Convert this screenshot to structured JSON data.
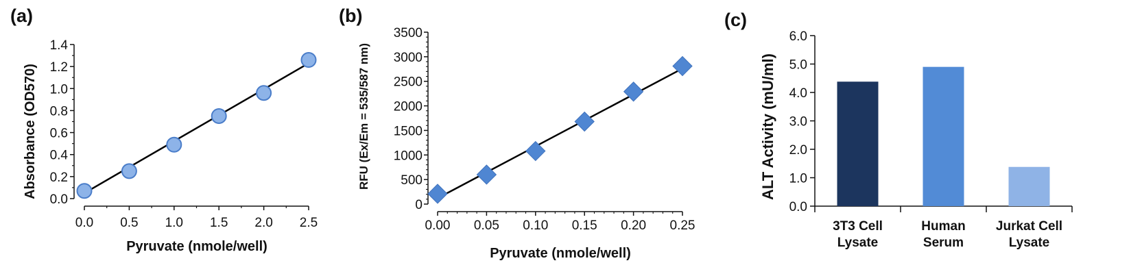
{
  "colors": {
    "circle_fill": "#8DB3E8",
    "circle_stroke": "#4A7DC9",
    "diamond_fill": "#4F86D2",
    "line": "#000000",
    "bars": [
      "#1C355E",
      "#528BD6",
      "#8FB3E6"
    ]
  },
  "chart_data": [
    {
      "panel": "(a)",
      "type": "scatter",
      "marker": "circle",
      "x": [
        0.0,
        0.5,
        1.0,
        1.5,
        2.0,
        2.5
      ],
      "y": [
        0.07,
        0.25,
        0.49,
        0.75,
        0.96,
        1.26
      ],
      "fit_line": {
        "x": [
          0.0,
          2.5
        ],
        "y": [
          0.05,
          1.23
        ]
      },
      "xlabel": "Pyruvate (nmole/well)",
      "ylabel": "Absorbance (OD570)",
      "xlim": [
        0.0,
        2.5
      ],
      "ylim": [
        0.0,
        1.4
      ],
      "xticks": [
        "0.0",
        "0.5",
        "1.0",
        "1.5",
        "2.0",
        "2.5"
      ],
      "yticks": [
        "0.0",
        "0.2",
        "0.4",
        "0.6",
        "0.8",
        "1.0",
        "1.2",
        "1.4"
      ]
    },
    {
      "panel": "(b)",
      "type": "scatter",
      "marker": "diamond",
      "x": [
        0.0,
        0.05,
        0.1,
        0.15,
        0.2,
        0.25
      ],
      "y": [
        210,
        600,
        1080,
        1680,
        2290,
        2810
      ],
      "fit_line": {
        "x": [
          0.0,
          0.25
        ],
        "y": [
          120,
          2760
        ]
      },
      "xlabel": "Pyruvate (nmole/well)",
      "ylabel": "RFU (Ex/Em = 535/587 nm)",
      "xlim": [
        0.0,
        0.25
      ],
      "ylim": [
        0,
        3500
      ],
      "xticks": [
        "0.00",
        "0.05",
        "0.10",
        "0.15",
        "0.20",
        "0.25"
      ],
      "yticks": [
        "0",
        "500",
        "1000",
        "1500",
        "2000",
        "2500",
        "3000",
        "3500"
      ]
    },
    {
      "panel": "(c)",
      "type": "bar",
      "categories": [
        [
          "3T3 Cell",
          "Lysate"
        ],
        [
          "Human",
          "Serum"
        ],
        [
          "Jurkat Cell",
          "Lysate"
        ]
      ],
      "values": [
        4.38,
        4.9,
        1.38
      ],
      "ylabel": "ALT Activity (mU/ml)",
      "ylim": [
        0.0,
        6.0
      ],
      "yticks": [
        "0.0",
        "1.0",
        "2.0",
        "3.0",
        "4.0",
        "5.0",
        "6.0"
      ]
    }
  ]
}
